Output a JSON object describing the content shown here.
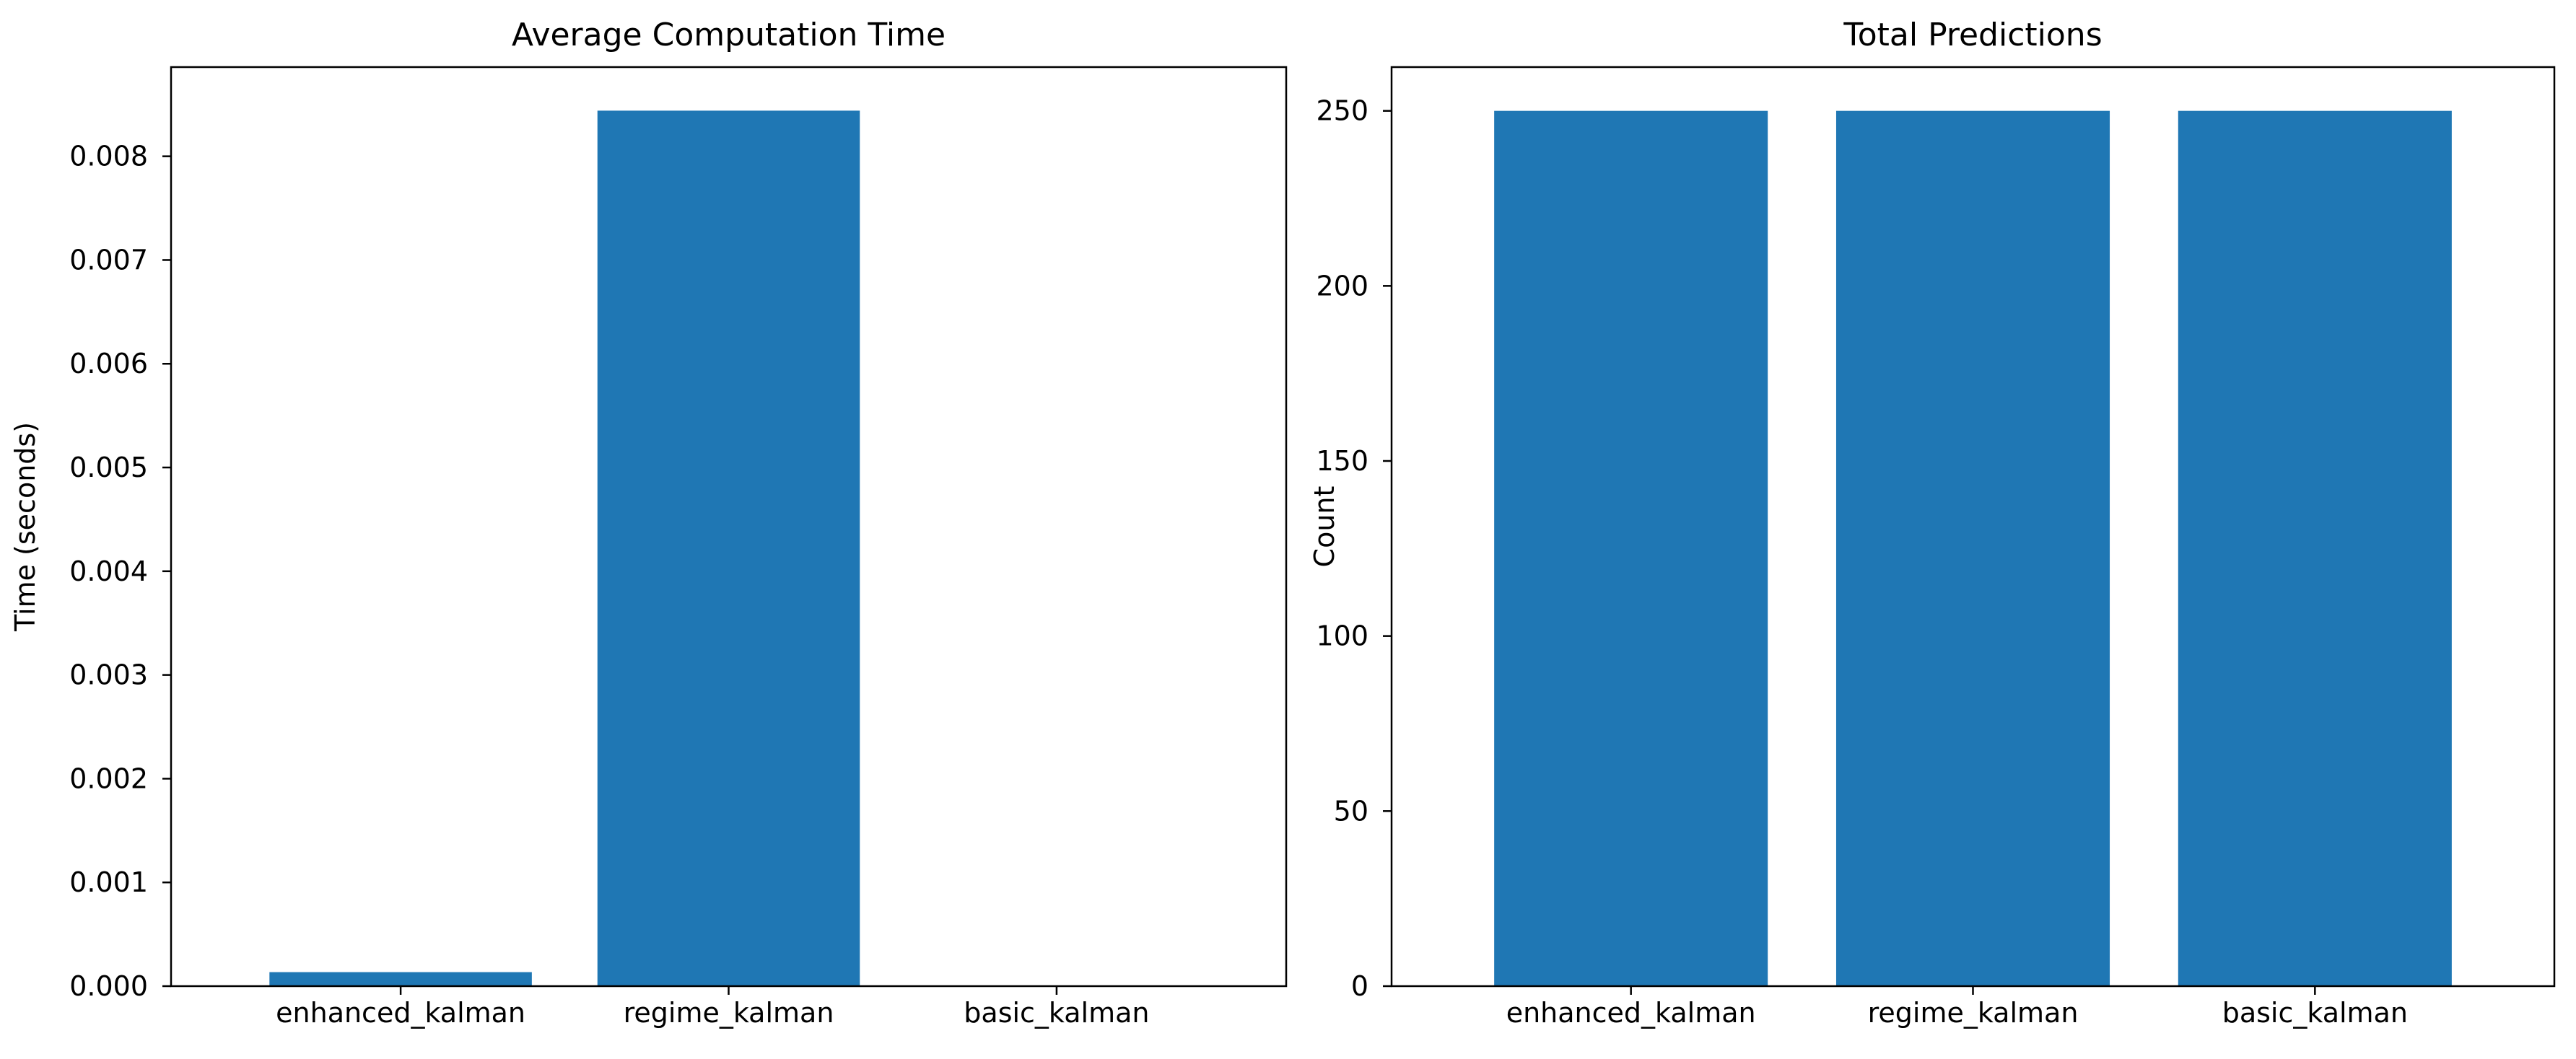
{
  "chart_data": [
    {
      "type": "bar",
      "title": "Average Computation Time",
      "xlabel": "",
      "ylabel": "Time (seconds)",
      "categories": [
        "enhanced_kalman",
        "regime_kalman",
        "basic_kalman"
      ],
      "values": [
        0.000135,
        0.00844,
        3e-06
      ],
      "ylim": [
        0,
        0.00886
      ],
      "yticks": [
        0.0,
        0.001,
        0.002,
        0.003,
        0.004,
        0.005,
        0.006,
        0.007,
        0.008
      ],
      "ytick_labels": [
        "0.000",
        "0.001",
        "0.002",
        "0.003",
        "0.004",
        "0.005",
        "0.006",
        "0.007",
        "0.008"
      ],
      "bar_color": "#1f77b4",
      "grid": false,
      "legend": "none"
    },
    {
      "type": "bar",
      "title": "Total Predictions",
      "xlabel": "",
      "ylabel": "Count",
      "categories": [
        "enhanced_kalman",
        "regime_kalman",
        "basic_kalman"
      ],
      "values": [
        250,
        250,
        250
      ],
      "ylim": [
        0,
        262.5
      ],
      "yticks": [
        0,
        50,
        100,
        150,
        200,
        250
      ],
      "ytick_labels": [
        "0",
        "50",
        "100",
        "150",
        "200",
        "250"
      ],
      "bar_color": "#1f77b4",
      "grid": false,
      "legend": "none"
    }
  ]
}
